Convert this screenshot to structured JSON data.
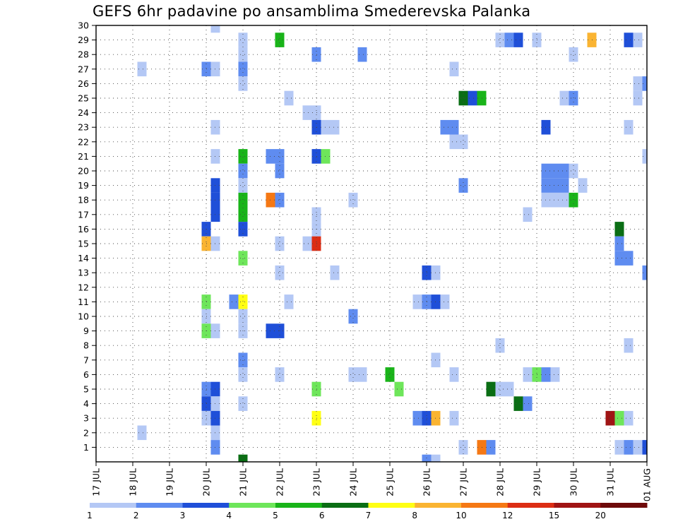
{
  "title": "GEFS 6hr padavine po ansamblima Smederevska Palanka",
  "chart_data": {
    "type": "heatmap",
    "title": "GEFS 6hr padavine po ansamblima Smederevska Palanka",
    "x_tick_labels": [
      "17 JUL",
      "18 JUL",
      "19 JUL",
      "20 JUL",
      "21 JUL",
      "22 JUL",
      "23 JUL",
      "24 JUL",
      "25 JUL",
      "26 JUL",
      "27 JUL",
      "28 JUL",
      "29 JUL",
      "30 JUL",
      "31 JUL",
      "01 AUG"
    ],
    "y_tick_labels": [
      "1",
      "2",
      "3",
      "4",
      "5",
      "6",
      "7",
      "8",
      "9",
      "10",
      "11",
      "12",
      "13",
      "14",
      "15",
      "16",
      "17",
      "18",
      "19",
      "20",
      "21",
      "22",
      "23",
      "24",
      "25",
      "26",
      "27",
      "28",
      "29",
      "30"
    ],
    "time_step_hours": 6,
    "ylim": [
      0,
      30
    ],
    "grid": true,
    "colorbar": {
      "colors": [
        "#b4c8f5",
        "#5f8cf0",
        "#1f4fd8",
        "#6ee65a",
        "#19b419",
        "#0a6e14",
        "#ffff14",
        "#fab432",
        "#f57814",
        "#dc2d14",
        "#a01414",
        "#6e0a0a"
      ],
      "labels": [
        "1",
        "2",
        "3",
        "4",
        "5",
        "6",
        "7",
        "8",
        "10",
        "12",
        "15",
        "20"
      ]
    },
    "cells": [
      {
        "member": 30,
        "step": 13,
        "level": 1
      },
      {
        "member": 29,
        "step": 16,
        "level": 1
      },
      {
        "member": 29,
        "step": 20,
        "level": 5
      },
      {
        "member": 29,
        "step": 44,
        "level": 1
      },
      {
        "member": 29,
        "step": 45,
        "level": 2
      },
      {
        "member": 29,
        "step": 46,
        "level": 3
      },
      {
        "member": 29,
        "step": 48,
        "level": 1
      },
      {
        "member": 29,
        "step": 54,
        "level": 8
      },
      {
        "member": 29,
        "step": 58,
        "level": 3
      },
      {
        "member": 29,
        "step": 59,
        "level": 1
      },
      {
        "member": 28,
        "step": 16,
        "level": 1
      },
      {
        "member": 28,
        "step": 24,
        "level": 2
      },
      {
        "member": 28,
        "step": 29,
        "level": 2
      },
      {
        "member": 28,
        "step": 52,
        "level": 1
      },
      {
        "member": 27,
        "step": 5,
        "level": 1
      },
      {
        "member": 27,
        "step": 12,
        "level": 2
      },
      {
        "member": 27,
        "step": 13,
        "level": 1
      },
      {
        "member": 27,
        "step": 16,
        "level": 2
      },
      {
        "member": 27,
        "step": 39,
        "level": 1
      },
      {
        "member": 26,
        "step": 16,
        "level": 1
      },
      {
        "member": 26,
        "step": 59,
        "level": 1
      },
      {
        "member": 26,
        "step": 60,
        "level": 2
      },
      {
        "member": 25,
        "step": 21,
        "level": 1
      },
      {
        "member": 25,
        "step": 40,
        "level": 6
      },
      {
        "member": 25,
        "step": 41,
        "level": 3
      },
      {
        "member": 25,
        "step": 42,
        "level": 5
      },
      {
        "member": 25,
        "step": 51,
        "level": 1
      },
      {
        "member": 25,
        "step": 52,
        "level": 2
      },
      {
        "member": 25,
        "step": 59,
        "level": 1
      },
      {
        "member": 24,
        "step": 23,
        "level": 1
      },
      {
        "member": 24,
        "step": 24,
        "level": 1
      },
      {
        "member": 23,
        "step": 13,
        "level": 1
      },
      {
        "member": 23,
        "step": 24,
        "level": 3
      },
      {
        "member": 23,
        "step": 25,
        "level": 1
      },
      {
        "member": 23,
        "step": 26,
        "level": 1
      },
      {
        "member": 23,
        "step": 38,
        "level": 2
      },
      {
        "member": 23,
        "step": 39,
        "level": 2
      },
      {
        "member": 23,
        "step": 49,
        "level": 3
      },
      {
        "member": 23,
        "step": 58,
        "level": 1
      },
      {
        "member": 22,
        "step": 39,
        "level": 1
      },
      {
        "member": 22,
        "step": 40,
        "level": 1
      },
      {
        "member": 21,
        "step": 13,
        "level": 1
      },
      {
        "member": 21,
        "step": 16,
        "level": 5
      },
      {
        "member": 21,
        "step": 19,
        "level": 2
      },
      {
        "member": 21,
        "step": 20,
        "level": 2
      },
      {
        "member": 21,
        "step": 24,
        "level": 3
      },
      {
        "member": 21,
        "step": 25,
        "level": 4
      },
      {
        "member": 21,
        "step": 60,
        "level": 1
      },
      {
        "member": 20,
        "step": 16,
        "level": 2
      },
      {
        "member": 20,
        "step": 20,
        "level": 2
      },
      {
        "member": 20,
        "step": 49,
        "level": 2
      },
      {
        "member": 20,
        "step": 50,
        "level": 2
      },
      {
        "member": 20,
        "step": 51,
        "level": 2
      },
      {
        "member": 20,
        "step": 52,
        "level": 1
      },
      {
        "member": 19,
        "step": 13,
        "level": 3
      },
      {
        "member": 19,
        "step": 16,
        "level": 1
      },
      {
        "member": 19,
        "step": 40,
        "level": 2
      },
      {
        "member": 19,
        "step": 49,
        "level": 2
      },
      {
        "member": 19,
        "step": 50,
        "level": 2
      },
      {
        "member": 19,
        "step": 51,
        "level": 2
      },
      {
        "member": 19,
        "step": 53,
        "level": 1
      },
      {
        "member": 18,
        "step": 13,
        "level": 3
      },
      {
        "member": 18,
        "step": 16,
        "level": 5
      },
      {
        "member": 18,
        "step": 19,
        "level": 9
      },
      {
        "member": 18,
        "step": 20,
        "level": 2
      },
      {
        "member": 18,
        "step": 28,
        "level": 1
      },
      {
        "member": 18,
        "step": 49,
        "level": 1
      },
      {
        "member": 18,
        "step": 50,
        "level": 1
      },
      {
        "member": 18,
        "step": 51,
        "level": 1
      },
      {
        "member": 18,
        "step": 52,
        "level": 5
      },
      {
        "member": 17,
        "step": 13,
        "level": 3
      },
      {
        "member": 17,
        "step": 16,
        "level": 5
      },
      {
        "member": 17,
        "step": 24,
        "level": 1
      },
      {
        "member": 17,
        "step": 47,
        "level": 1
      },
      {
        "member": 16,
        "step": 12,
        "level": 3
      },
      {
        "member": 16,
        "step": 16,
        "level": 3
      },
      {
        "member": 16,
        "step": 24,
        "level": 1
      },
      {
        "member": 16,
        "step": 57,
        "level": 6
      },
      {
        "member": 15,
        "step": 12,
        "level": 8
      },
      {
        "member": 15,
        "step": 13,
        "level": 1
      },
      {
        "member": 15,
        "step": 20,
        "level": 1
      },
      {
        "member": 15,
        "step": 23,
        "level": 1
      },
      {
        "member": 15,
        "step": 24,
        "level": 10
      },
      {
        "member": 15,
        "step": 57,
        "level": 2
      },
      {
        "member": 14,
        "step": 16,
        "level": 4
      },
      {
        "member": 14,
        "step": 57,
        "level": 2
      },
      {
        "member": 14,
        "step": 58,
        "level": 2
      },
      {
        "member": 13,
        "step": 20,
        "level": 1
      },
      {
        "member": 13,
        "step": 26,
        "level": 1
      },
      {
        "member": 13,
        "step": 36,
        "level": 3
      },
      {
        "member": 13,
        "step": 37,
        "level": 1
      },
      {
        "member": 13,
        "step": 60,
        "level": 2
      },
      {
        "member": 11,
        "step": 12,
        "level": 4
      },
      {
        "member": 11,
        "step": 15,
        "level": 2
      },
      {
        "member": 11,
        "step": 16,
        "level": 7
      },
      {
        "member": 11,
        "step": 21,
        "level": 1
      },
      {
        "member": 11,
        "step": 35,
        "level": 1
      },
      {
        "member": 11,
        "step": 36,
        "level": 2
      },
      {
        "member": 11,
        "step": 37,
        "level": 3
      },
      {
        "member": 11,
        "step": 38,
        "level": 1
      },
      {
        "member": 10,
        "step": 12,
        "level": 1
      },
      {
        "member": 10,
        "step": 16,
        "level": 1
      },
      {
        "member": 10,
        "step": 28,
        "level": 2
      },
      {
        "member": 9,
        "step": 12,
        "level": 4
      },
      {
        "member": 9,
        "step": 13,
        "level": 1
      },
      {
        "member": 9,
        "step": 16,
        "level": 1
      },
      {
        "member": 9,
        "step": 19,
        "level": 3
      },
      {
        "member": 9,
        "step": 20,
        "level": 3
      },
      {
        "member": 8,
        "step": 44,
        "level": 1
      },
      {
        "member": 8,
        "step": 58,
        "level": 1
      },
      {
        "member": 7,
        "step": 16,
        "level": 2
      },
      {
        "member": 7,
        "step": 37,
        "level": 1
      },
      {
        "member": 6,
        "step": 16,
        "level": 1
      },
      {
        "member": 6,
        "step": 20,
        "level": 1
      },
      {
        "member": 6,
        "step": 28,
        "level": 1
      },
      {
        "member": 6,
        "step": 29,
        "level": 1
      },
      {
        "member": 6,
        "step": 32,
        "level": 5
      },
      {
        "member": 6,
        "step": 39,
        "level": 1
      },
      {
        "member": 6,
        "step": 47,
        "level": 1
      },
      {
        "member": 6,
        "step": 48,
        "level": 4
      },
      {
        "member": 6,
        "step": 49,
        "level": 2
      },
      {
        "member": 6,
        "step": 50,
        "level": 1
      },
      {
        "member": 5,
        "step": 12,
        "level": 2
      },
      {
        "member": 5,
        "step": 13,
        "level": 3
      },
      {
        "member": 5,
        "step": 24,
        "level": 4
      },
      {
        "member": 5,
        "step": 33,
        "level": 4
      },
      {
        "member": 5,
        "step": 43,
        "level": 6
      },
      {
        "member": 5,
        "step": 44,
        "level": 1
      },
      {
        "member": 5,
        "step": 45,
        "level": 1
      },
      {
        "member": 4,
        "step": 12,
        "level": 3
      },
      {
        "member": 4,
        "step": 13,
        "level": 1
      },
      {
        "member": 4,
        "step": 16,
        "level": 1
      },
      {
        "member": 4,
        "step": 46,
        "level": 6
      },
      {
        "member": 4,
        "step": 47,
        "level": 2
      },
      {
        "member": 3,
        "step": 12,
        "level": 1
      },
      {
        "member": 3,
        "step": 13,
        "level": 3
      },
      {
        "member": 3,
        "step": 24,
        "level": 7
      },
      {
        "member": 3,
        "step": 35,
        "level": 2
      },
      {
        "member": 3,
        "step": 36,
        "level": 3
      },
      {
        "member": 3,
        "step": 37,
        "level": 8
      },
      {
        "member": 3,
        "step": 39,
        "level": 1
      },
      {
        "member": 3,
        "step": 56,
        "level": 11
      },
      {
        "member": 3,
        "step": 57,
        "level": 4
      },
      {
        "member": 3,
        "step": 58,
        "level": 1
      },
      {
        "member": 2,
        "step": 5,
        "level": 1
      },
      {
        "member": 2,
        "step": 13,
        "level": 1
      },
      {
        "member": 1,
        "step": 13,
        "level": 2
      },
      {
        "member": 1,
        "step": 40,
        "level": 1
      },
      {
        "member": 1,
        "step": 42,
        "level": 9
      },
      {
        "member": 1,
        "step": 43,
        "level": 2
      },
      {
        "member": 1,
        "step": 57,
        "level": 1
      },
      {
        "member": 1,
        "step": 58,
        "level": 2
      },
      {
        "member": 1,
        "step": 59,
        "level": 1
      },
      {
        "member": 1,
        "step": 60,
        "level": 3
      },
      {
        "member": 0,
        "step": 16,
        "level": 6
      },
      {
        "member": 0,
        "step": 36,
        "level": 2
      },
      {
        "member": 0,
        "step": 37,
        "level": 1
      }
    ]
  }
}
